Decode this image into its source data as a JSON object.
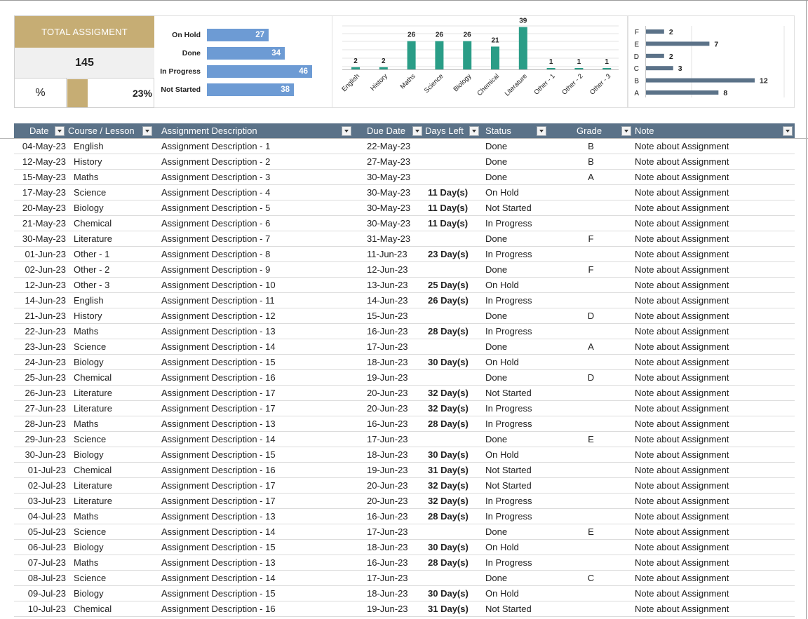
{
  "summary": {
    "title": "TOTAL ASSIGMENT",
    "total": "145",
    "percent_symbol": "%",
    "percent_done": "23%",
    "percent_value": 0.23
  },
  "colors": {
    "gold": "#c6ad74",
    "status_bar": "#6d9bd4",
    "course_bar": "#2a9d87",
    "grade_bar": "#5b7288",
    "header": "#5b7288"
  },
  "chart_data": [
    {
      "type": "bar",
      "orientation": "horizontal",
      "categories": [
        "On Hold",
        "Done",
        "In Progress",
        "Not Started"
      ],
      "values": [
        27,
        34,
        46,
        38
      ]
    },
    {
      "type": "bar",
      "orientation": "vertical",
      "categories": [
        "English",
        "History",
        "Maths",
        "Science",
        "Biology",
        "Chemical",
        "Literature",
        "Other - 1",
        "Other - 2",
        "Other - 3"
      ],
      "values": [
        2,
        2,
        26,
        26,
        26,
        21,
        39,
        1,
        1,
        1
      ],
      "grid": true
    },
    {
      "type": "bar",
      "orientation": "horizontal",
      "categories": [
        "F",
        "E",
        "D",
        "C",
        "B",
        "A"
      ],
      "values": [
        2,
        7,
        2,
        3,
        12,
        8
      ]
    }
  ],
  "table": {
    "headers": {
      "date": "Date",
      "course": "Course / Lesson",
      "desc": "Assignment Description",
      "due": "Due Date",
      "days": "Days Left",
      "status": "Status",
      "grade": "Grade",
      "note": "Note"
    },
    "rows": [
      [
        "04-May-23",
        "English",
        "Assignment Description - 1",
        "22-May-23",
        "",
        "Done",
        "B",
        "Note about Assignment"
      ],
      [
        "12-May-23",
        "History",
        "Assignment Description - 2",
        "27-May-23",
        "",
        "Done",
        "B",
        "Note about Assignment"
      ],
      [
        "15-May-23",
        "Maths",
        "Assignment Description - 3",
        "30-May-23",
        "",
        "Done",
        "A",
        "Note about Assignment"
      ],
      [
        "17-May-23",
        "Science",
        "Assignment Description - 4",
        "30-May-23",
        "11 Day(s)",
        "On Hold",
        "",
        "Note about Assignment"
      ],
      [
        "20-May-23",
        "Biology",
        "Assignment Description - 5",
        "30-May-23",
        "11 Day(s)",
        "Not Started",
        "",
        "Note about Assignment"
      ],
      [
        "21-May-23",
        "Chemical",
        "Assignment Description - 6",
        "30-May-23",
        "11 Day(s)",
        "In Progress",
        "",
        "Note about Assignment"
      ],
      [
        "30-May-23",
        "Literature",
        "Assignment Description - 7",
        "31-May-23",
        "",
        "Done",
        "F",
        "Note about Assignment"
      ],
      [
        "01-Jun-23",
        "Other - 1",
        "Assignment Description - 8",
        "11-Jun-23",
        "23 Day(s)",
        "In Progress",
        "",
        "Note about Assignment"
      ],
      [
        "02-Jun-23",
        "Other - 2",
        "Assignment Description - 9",
        "12-Jun-23",
        "",
        "Done",
        "F",
        "Note about Assignment"
      ],
      [
        "12-Jun-23",
        "Other - 3",
        "Assignment Description - 10",
        "13-Jun-23",
        "25 Day(s)",
        "On Hold",
        "",
        "Note about Assignment"
      ],
      [
        "14-Jun-23",
        "English",
        "Assignment Description - 11",
        "14-Jun-23",
        "26 Day(s)",
        "In Progress",
        "",
        "Note about Assignment"
      ],
      [
        "21-Jun-23",
        "History",
        "Assignment Description - 12",
        "15-Jun-23",
        "",
        "Done",
        "D",
        "Note about Assignment"
      ],
      [
        "22-Jun-23",
        "Maths",
        "Assignment Description - 13",
        "16-Jun-23",
        "28 Day(s)",
        "In Progress",
        "",
        "Note about Assignment"
      ],
      [
        "23-Jun-23",
        "Science",
        "Assignment Description - 14",
        "17-Jun-23",
        "",
        "Done",
        "A",
        "Note about Assignment"
      ],
      [
        "24-Jun-23",
        "Biology",
        "Assignment Description - 15",
        "18-Jun-23",
        "30 Day(s)",
        "On Hold",
        "",
        "Note about Assignment"
      ],
      [
        "25-Jun-23",
        "Chemical",
        "Assignment Description - 16",
        "19-Jun-23",
        "",
        "Done",
        "D",
        "Note about Assignment"
      ],
      [
        "26-Jun-23",
        "Literature",
        "Assignment Description - 17",
        "20-Jun-23",
        "32 Day(s)",
        "Not Started",
        "",
        "Note about Assignment"
      ],
      [
        "27-Jun-23",
        "Literature",
        "Assignment Description - 17",
        "20-Jun-23",
        "32 Day(s)",
        "In Progress",
        "",
        "Note about Assignment"
      ],
      [
        "28-Jun-23",
        "Maths",
        "Assignment Description - 13",
        "16-Jun-23",
        "28 Day(s)",
        "In Progress",
        "",
        "Note about Assignment"
      ],
      [
        "29-Jun-23",
        "Science",
        "Assignment Description - 14",
        "17-Jun-23",
        "",
        "Done",
        "E",
        "Note about Assignment"
      ],
      [
        "30-Jun-23",
        "Biology",
        "Assignment Description - 15",
        "18-Jun-23",
        "30 Day(s)",
        "On Hold",
        "",
        "Note about Assignment"
      ],
      [
        "01-Jul-23",
        "Chemical",
        "Assignment Description - 16",
        "19-Jun-23",
        "31 Day(s)",
        "Not Started",
        "",
        "Note about Assignment"
      ],
      [
        "02-Jul-23",
        "Literature",
        "Assignment Description - 17",
        "20-Jun-23",
        "32 Day(s)",
        "Not Started",
        "",
        "Note about Assignment"
      ],
      [
        "03-Jul-23",
        "Literature",
        "Assignment Description - 17",
        "20-Jun-23",
        "32 Day(s)",
        "In Progress",
        "",
        "Note about Assignment"
      ],
      [
        "04-Jul-23",
        "Maths",
        "Assignment Description - 13",
        "16-Jun-23",
        "28 Day(s)",
        "In Progress",
        "",
        "Note about Assignment"
      ],
      [
        "05-Jul-23",
        "Science",
        "Assignment Description - 14",
        "17-Jun-23",
        "",
        "Done",
        "E",
        "Note about Assignment"
      ],
      [
        "06-Jul-23",
        "Biology",
        "Assignment Description - 15",
        "18-Jun-23",
        "30 Day(s)",
        "On Hold",
        "",
        "Note about Assignment"
      ],
      [
        "07-Jul-23",
        "Maths",
        "Assignment Description - 13",
        "16-Jun-23",
        "28 Day(s)",
        "In Progress",
        "",
        "Note about Assignment"
      ],
      [
        "08-Jul-23",
        "Science",
        "Assignment Description - 14",
        "17-Jun-23",
        "",
        "Done",
        "C",
        "Note about Assignment"
      ],
      [
        "09-Jul-23",
        "Biology",
        "Assignment Description - 15",
        "18-Jun-23",
        "30 Day(s)",
        "On Hold",
        "",
        "Note about Assignment"
      ],
      [
        "10-Jul-23",
        "Chemical",
        "Assignment Description - 16",
        "19-Jun-23",
        "31 Day(s)",
        "Not Started",
        "",
        "Note about Assignment"
      ]
    ]
  }
}
